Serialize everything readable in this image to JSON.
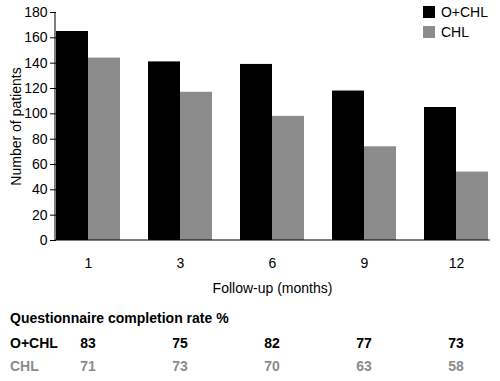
{
  "chart_data": {
    "type": "bar",
    "x_label": "Follow-up (months)",
    "y_label": "Number of patients",
    "categories": [
      1,
      3,
      6,
      9,
      12
    ],
    "series": [
      {
        "name": "O+CHL",
        "color": "#000000",
        "values": [
          165,
          141,
          139,
          118,
          105
        ]
      },
      {
        "name": "CHL",
        "color": "#8c8c8c",
        "values": [
          144,
          117,
          98,
          74,
          54
        ]
      }
    ],
    "ylim": [
      0,
      180
    ],
    "yticks": [
      0,
      20,
      40,
      60,
      80,
      100,
      120,
      140,
      160,
      180
    ],
    "legend": "top-right",
    "grid": false
  },
  "table": {
    "title": "Questionnaire completion rate %",
    "rows": [
      {
        "name": "O+CHL",
        "values": [
          83,
          75,
          82,
          77,
          73
        ]
      },
      {
        "name": "CHL",
        "values": [
          71,
          73,
          70,
          63,
          58
        ]
      }
    ]
  }
}
